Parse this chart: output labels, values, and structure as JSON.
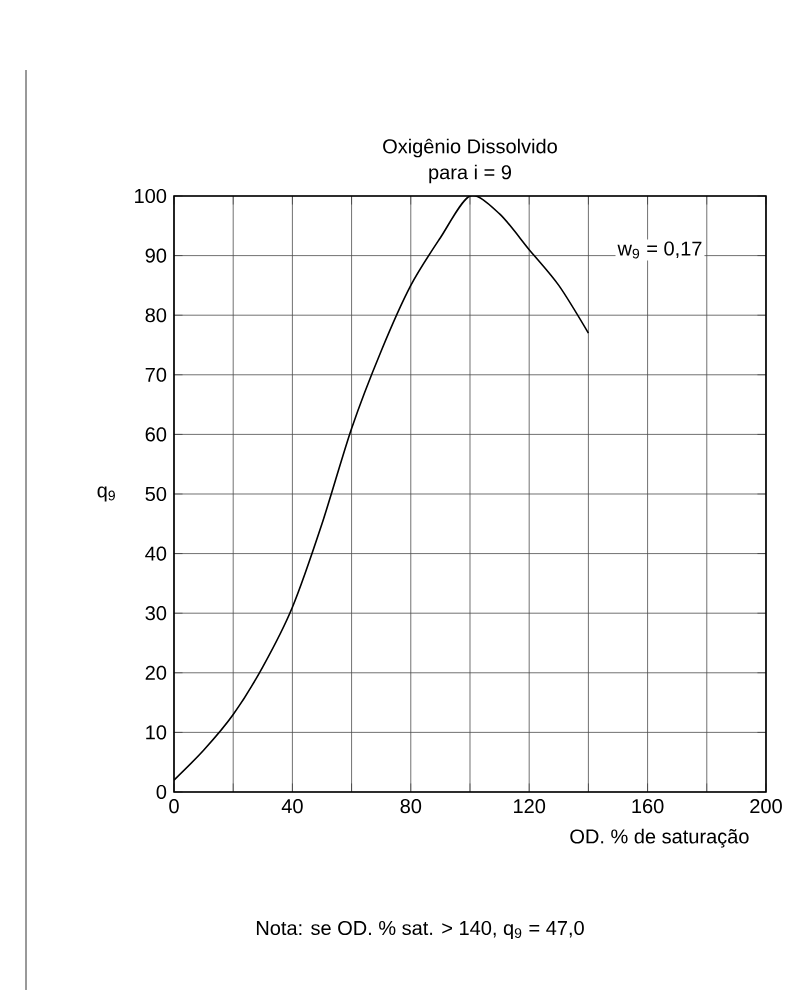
{
  "chart_data": {
    "type": "line",
    "title": "Oxigênio Dissolvido",
    "subtitle": "para i =  9",
    "xlabel": "OD. % de saturação",
    "ylabel": "q$_{9}$",
    "annotations": [
      "w$_{9}$  =  0,17",
      "Nota: se OD. % sat. > 140, q$_{9}$  =  47,0"
    ],
    "x": [
      0,
      10,
      20,
      30,
      40,
      50,
      60,
      70,
      80,
      90,
      100,
      110,
      120,
      130,
      140
    ],
    "series": [
      {
        "color": "#000000",
        "values": [
          2,
          7,
          13,
          21,
          31,
          45,
          61,
          74,
          85,
          93,
          100,
          97,
          91,
          85,
          77
        ]
      }
    ],
    "xlim": [
      0,
      200
    ],
    "ylim": [
      0,
      100
    ],
    "xticks": [
      0,
      {
        "value": 20,
        "label": null
      },
      40,
      {
        "value": 60,
        "label": null
      },
      80,
      {
        "value": 100,
        "label": null
      },
      120,
      {
        "value": 140,
        "label": null
      },
      160,
      {
        "value": 180,
        "label": null
      },
      200
    ],
    "yticks": [
      0,
      10,
      20,
      30,
      40,
      50,
      60,
      70,
      80,
      90,
      100
    ],
    "grid": true,
    "marker": "none",
    "line_style": "solid"
  }
}
